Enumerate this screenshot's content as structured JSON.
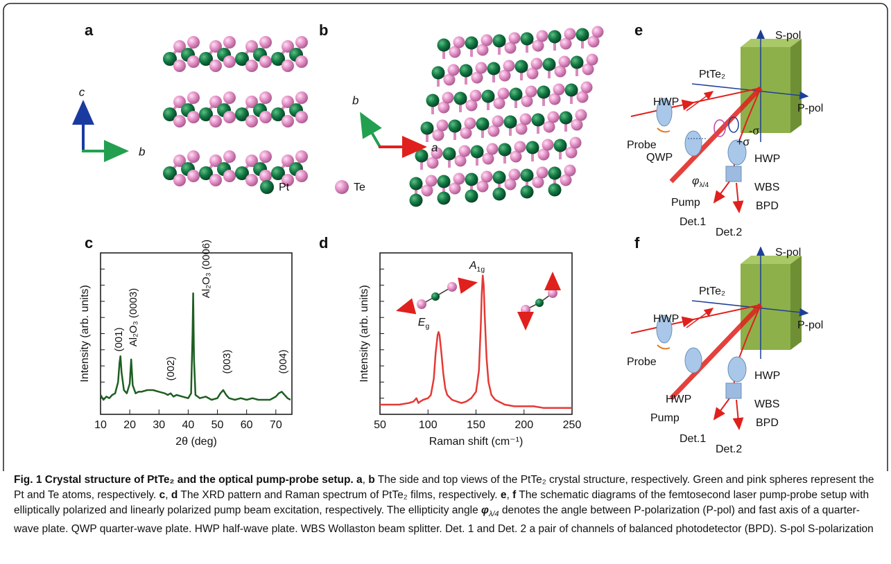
{
  "panel_labels": [
    "a",
    "b",
    "c",
    "d",
    "e",
    "f"
  ],
  "structure": {
    "axis_a": [
      "c",
      "b"
    ],
    "axis_b": [
      "b",
      "a"
    ],
    "legend": [
      "Pt",
      "Te"
    ]
  },
  "chart_data": [
    {
      "type": "line",
      "color": "#1e5e22",
      "x": [
        10,
        11,
        12,
        13,
        14,
        15,
        16,
        16.5,
        16.8,
        17.2,
        18,
        19,
        20,
        20.5,
        21,
        22,
        23,
        24,
        26,
        28,
        30,
        32,
        33,
        34,
        35,
        36,
        38,
        40,
        41,
        41.5,
        41.7,
        42,
        42.5,
        44,
        46,
        48,
        50,
        51,
        52,
        53,
        54,
        56,
        58,
        60,
        62,
        64,
        66,
        68,
        70,
        71,
        72,
        73,
        74,
        75
      ],
      "values": [
        12,
        9,
        11,
        10,
        12,
        13,
        20,
        32,
        36,
        26,
        15,
        13,
        19,
        34,
        18,
        13,
        14,
        14,
        15,
        15,
        14,
        13,
        12,
        13,
        11,
        12,
        11,
        10,
        13,
        50,
        75,
        34,
        12,
        10,
        11,
        9,
        10,
        13,
        15,
        12,
        10,
        9,
        10,
        9,
        10,
        9,
        9,
        9,
        11,
        13,
        14,
        12,
        10,
        9
      ],
      "xlim": [
        10,
        75.5
      ],
      "xticks": [
        10,
        20,
        30,
        40,
        50,
        60,
        70
      ],
      "ylim": [
        0,
        100
      ],
      "xlabel": "2θ (deg)",
      "ylabel": "Intensity (arb. units)",
      "annotations": [
        "(001)",
        "Al₂O₃ (0003)",
        "(002)",
        "Al₂O₃ (0006)",
        "(003)",
        "(004)"
      ]
    },
    {
      "type": "line",
      "color": "#e53935",
      "x": [
        50,
        60,
        70,
        80,
        85,
        88,
        90,
        92,
        95,
        100,
        103,
        106,
        108,
        110,
        111,
        112,
        114,
        116,
        118,
        120,
        125,
        130,
        135,
        140,
        145,
        150,
        153,
        155,
        156,
        157,
        158,
        159,
        161,
        163,
        166,
        170,
        180,
        190,
        200,
        210,
        220,
        230,
        240,
        250
      ],
      "values": [
        6,
        6,
        6,
        7,
        8,
        10,
        7,
        8,
        9,
        10,
        12,
        22,
        38,
        49,
        51,
        49,
        38,
        25,
        16,
        12,
        9,
        8,
        7,
        8,
        10,
        14,
        27,
        55,
        75,
        86,
        80,
        62,
        35,
        20,
        12,
        9,
        6,
        5,
        5,
        5,
        4,
        4,
        4,
        4
      ],
      "xlim": [
        50,
        250
      ],
      "xticks": [
        50,
        100,
        150,
        200,
        250
      ],
      "ylim": [
        0,
        100
      ],
      "xlabel": "Raman shift (cm⁻¹)",
      "ylabel": "Intensity (arb. units)",
      "annotations": [
        {
          "main": "E",
          "sub": "g"
        },
        {
          "main": "A",
          "sub": "1g"
        }
      ]
    }
  ],
  "diagrams": {
    "e": {
      "s_pol": "S-pol",
      "material": "PtTe₂",
      "hwp_probe": "HWP",
      "p_pol": "P-pol",
      "probe": "Probe",
      "qwp": "QWP",
      "plus_sigma": "+σ",
      "minus_sigma": "-σ",
      "angle": {
        "main": "φ",
        "sub": "λ/4"
      },
      "hwp_det": "HWP",
      "pump": "Pump",
      "wbs": "WBS",
      "bpd": "BPD",
      "det1": "Det.1",
      "det2": "Det.2"
    },
    "f": {
      "s_pol": "S-pol",
      "material": "PtTe₂",
      "hwp_probe": "HWP",
      "p_pol": "P-pol",
      "probe": "Probe",
      "hwp_pump": "HWP",
      "hwp_det": "HWP",
      "pump": "Pump",
      "wbs": "WBS",
      "bpd": "BPD",
      "det1": "Det.1",
      "det2": "Det.2"
    }
  },
  "caption": [
    {
      "text": "Fig. 1 Crystal structure of PtTe₂ and the optical pump-probe setup. ",
      "bold": true
    },
    {
      "text": "a",
      "bold": true
    },
    {
      "text": ", "
    },
    {
      "text": "b",
      "bold": true
    },
    {
      "text": " The side and top views of the PtTe₂ crystal structure, respectively. Green and pink spheres represent the Pt and Te atoms, respectively. "
    },
    {
      "text": "c",
      "bold": true
    },
    {
      "text": ", "
    },
    {
      "text": "d",
      "bold": true
    },
    {
      "text": " The XRD pattern and Raman spectrum of PtTe₂ films, respectively. "
    },
    {
      "text": "e",
      "bold": true
    },
    {
      "text": ", "
    },
    {
      "text": "f",
      "bold": true
    },
    {
      "text": " The schematic diagrams of the femtosecond laser pump-probe setup with elliptically polarized and linearly polarized pump beam excitation, respectively. The ellipticity angle "
    },
    {
      "text": "φ",
      "sub": "λ/4",
      "bold": true,
      "italic": true
    },
    {
      "text": " denotes the angle between P-polarization (P-pol) and fast axis of a quarter-wave plate. QWP quarter-wave plate. HWP half-wave plate. WBS Wollaston beam splitter. Det. 1 and Det. 2 a pair of channels of balanced photodetector (BPD). S-pol S-polarization"
    }
  ]
}
